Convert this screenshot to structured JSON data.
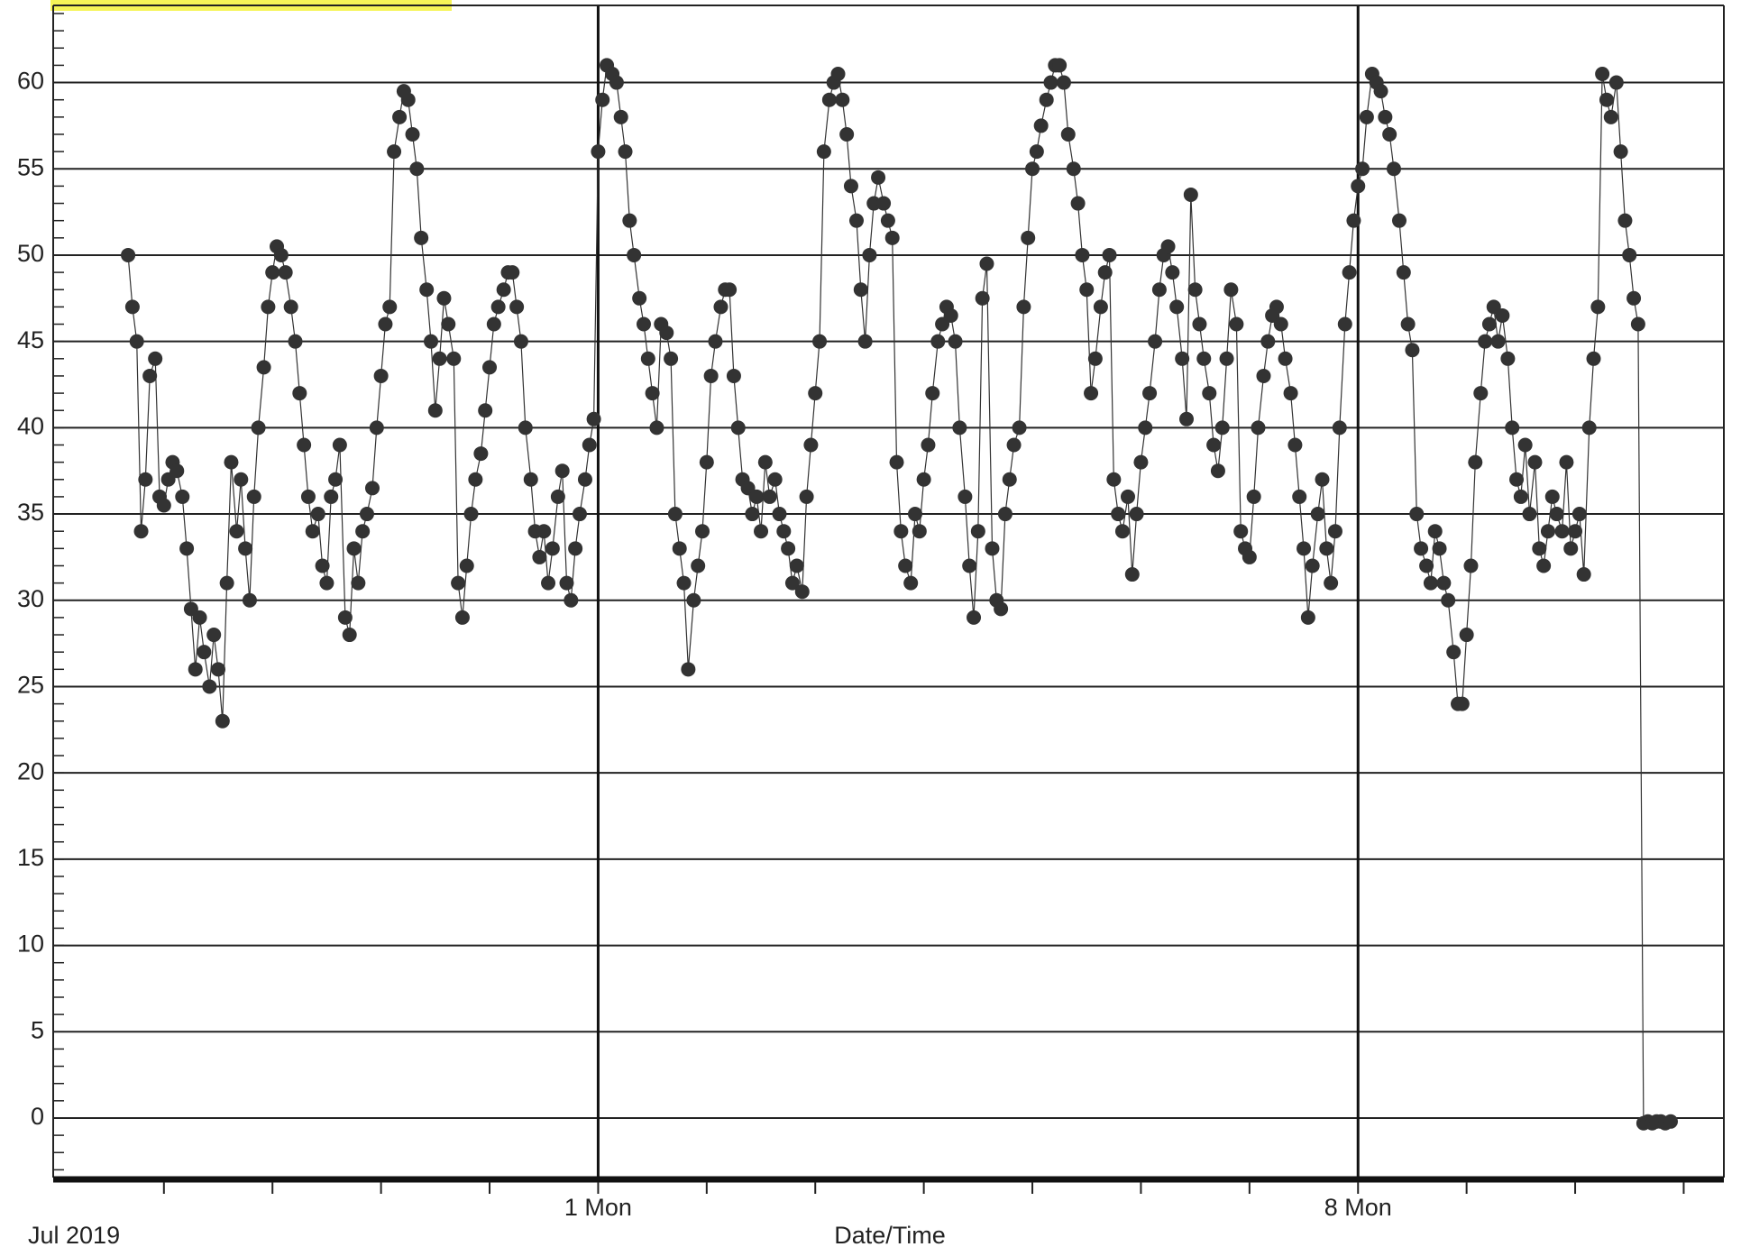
{
  "chart_data": {
    "type": "line",
    "x_label": "Date/Time",
    "x_origin_label": "Jul 2019",
    "color": "#333333",
    "marker": true,
    "grid": true,
    "xlim": [
      -4.02,
      11.37
    ],
    "ylim": [
      -3.45,
      64.47
    ],
    "xticks": [
      {
        "value": 1,
        "label": "1 Mon"
      },
      {
        "value": 8,
        "label": "8 Mon"
      }
    ],
    "xminorticks": [
      -3,
      -2,
      -1,
      0,
      1,
      2,
      3,
      4,
      5,
      6,
      7,
      8,
      9,
      10,
      11
    ],
    "yticks": [
      0,
      5,
      10,
      15,
      20,
      25,
      30,
      35,
      40,
      45,
      50,
      55,
      60
    ],
    "yminorticks": [
      -3,
      -2,
      -1,
      0,
      1,
      2,
      3,
      4,
      5,
      6,
      7,
      8,
      9,
      10,
      11,
      12,
      13,
      14,
      15,
      16,
      17,
      18,
      19,
      20,
      21,
      22,
      23,
      24,
      25,
      26,
      27,
      28,
      29,
      30,
      31,
      32,
      33,
      34,
      35,
      36,
      37,
      38,
      39,
      40,
      41,
      42,
      43,
      44,
      45,
      46,
      47,
      48,
      49,
      50,
      51,
      52,
      53,
      54,
      55,
      56,
      57,
      58,
      59,
      60,
      61,
      62,
      63,
      64
    ],
    "x": [
      -3.33,
      -3.29,
      -3.25,
      -3.21,
      -3.17,
      -3.13,
      -3.08,
      -3.04,
      -3.0,
      -2.96,
      -2.92,
      -2.88,
      -2.83,
      -2.79,
      -2.75,
      -2.71,
      -2.67,
      -2.63,
      -2.58,
      -2.54,
      -2.5,
      -2.46,
      -2.42,
      -2.38,
      -2.33,
      -2.29,
      -2.25,
      -2.21,
      -2.17,
      -2.13,
      -2.08,
      -2.04,
      -2.0,
      -1.96,
      -1.92,
      -1.88,
      -1.83,
      -1.79,
      -1.75,
      -1.71,
      -1.67,
      -1.63,
      -1.58,
      -1.54,
      -1.5,
      -1.46,
      -1.42,
      -1.38,
      -1.33,
      -1.29,
      -1.25,
      -1.21,
      -1.17,
      -1.13,
      -1.08,
      -1.04,
      -1.0,
      -0.96,
      -0.92,
      -0.88,
      -0.83,
      -0.79,
      -0.75,
      -0.71,
      -0.67,
      -0.63,
      -0.58,
      -0.54,
      -0.5,
      -0.46,
      -0.42,
      -0.38,
      -0.33,
      -0.29,
      -0.25,
      -0.21,
      -0.17,
      -0.13,
      -0.08,
      -0.04,
      0,
      0.04,
      0.08,
      0.13,
      0.17,
      0.21,
      0.25,
      0.29,
      0.33,
      0.38,
      0.42,
      0.46,
      0.5,
      0.54,
      0.58,
      0.63,
      0.67,
      0.71,
      0.75,
      0.79,
      0.83,
      0.88,
      0.92,
      0.96,
      1,
      1.04,
      1.08,
      1.13,
      1.17,
      1.21,
      1.25,
      1.29,
      1.33,
      1.38,
      1.42,
      1.46,
      1.5,
      1.54,
      1.58,
      1.63,
      1.67,
      1.71,
      1.75,
      1.79,
      1.83,
      1.88,
      1.92,
      1.96,
      2,
      2.04,
      2.08,
      2.13,
      2.17,
      2.21,
      2.25,
      2.29,
      2.33,
      2.38,
      2.42,
      2.46,
      2.5,
      2.54,
      2.58,
      2.63,
      2.67,
      2.71,
      2.75,
      2.79,
      2.83,
      2.88,
      2.92,
      2.96,
      3,
      3.04,
      3.08,
      3.13,
      3.17,
      3.21,
      3.25,
      3.29,
      3.33,
      3.38,
      3.42,
      3.46,
      3.5,
      3.54,
      3.58,
      3.63,
      3.67,
      3.71,
      3.75,
      3.79,
      3.83,
      3.88,
      3.92,
      3.96,
      4,
      4.04,
      4.08,
      4.13,
      4.17,
      4.21,
      4.25,
      4.29,
      4.33,
      4.38,
      4.42,
      4.46,
      4.5,
      4.54,
      4.58,
      4.63,
      4.67,
      4.71,
      4.75,
      4.79,
      4.83,
      4.88,
      4.92,
      4.96,
      5,
      5.04,
      5.08,
      5.13,
      5.17,
      5.21,
      5.25,
      5.29,
      5.33,
      5.38,
      5.42,
      5.46,
      5.5,
      5.54,
      5.58,
      5.63,
      5.67,
      5.71,
      5.75,
      5.79,
      5.83,
      5.88,
      5.92,
      5.96,
      6,
      6.04,
      6.08,
      6.13,
      6.17,
      6.21,
      6.25,
      6.29,
      6.33,
      6.38,
      6.42,
      6.46,
      6.5,
      6.54,
      6.58,
      6.63,
      6.67,
      6.71,
      6.75,
      6.79,
      6.83,
      6.88,
      6.92,
      6.96,
      7,
      7.04,
      7.08,
      7.13,
      7.17,
      7.21,
      7.25,
      7.29,
      7.33,
      7.38,
      7.42,
      7.46,
      7.5,
      7.54,
      7.58,
      7.63,
      7.67,
      7.71,
      7.75,
      7.79,
      7.83,
      7.88,
      7.92,
      7.96,
      8,
      8.04,
      8.08,
      8.13,
      8.17,
      8.21,
      8.25,
      8.29,
      8.33,
      8.38,
      8.42,
      8.46,
      8.5,
      8.54,
      8.58,
      8.63,
      8.67,
      8.71,
      8.75,
      8.79,
      8.83,
      8.88,
      8.92,
      8.96,
      9,
      9.04,
      9.08,
      9.13,
      9.17,
      9.21,
      9.25,
      9.29,
      9.33,
      9.38,
      9.42,
      9.46,
      9.5,
      9.54,
      9.58,
      9.63,
      9.67,
      9.71,
      9.75,
      9.79,
      9.83,
      9.88,
      9.92,
      9.96,
      10,
      10.04,
      10.08,
      10.13,
      10.17,
      10.21,
      10.25,
      10.29,
      10.33,
      10.38,
      10.42,
      10.46,
      10.5,
      10.54,
      10.58,
      10.63,
      10.67,
      10.71,
      10.75,
      10.79,
      10.83,
      10.88
    ],
    "values": [
      50,
      47,
      45,
      34,
      37,
      43,
      44,
      36,
      35.5,
      37,
      38,
      37.5,
      36,
      33,
      29.5,
      26,
      29,
      27,
      25,
      28,
      26,
      23,
      31,
      38,
      34,
      37,
      33,
      30,
      36,
      40,
      43.5,
      47,
      49,
      50.5,
      50,
      49,
      47,
      45,
      42,
      39,
      36,
      34,
      35,
      32,
      31,
      36,
      37,
      39,
      29,
      28,
      33,
      31,
      34,
      35,
      36.5,
      40,
      43,
      46,
      47,
      56,
      58,
      59.5,
      59,
      57,
      55,
      51,
      48,
      45,
      41,
      44,
      47.5,
      46,
      44,
      31,
      29,
      32,
      35,
      37,
      38.5,
      41,
      43.5,
      46,
      47,
      48,
      49,
      49,
      47,
      45,
      40,
      37,
      34,
      32.5,
      34,
      31,
      33,
      36,
      37.5,
      31,
      30,
      33,
      35,
      37,
      39,
      40.5,
      56,
      59,
      61,
      60.5,
      60,
      58,
      56,
      52,
      50,
      47.5,
      46,
      44,
      42,
      40,
      46,
      45.5,
      44,
      35,
      33,
      31,
      26,
      30,
      32,
      34,
      38,
      43,
      45,
      47,
      48,
      48,
      43,
      40,
      37,
      36.5,
      35,
      36,
      34,
      38,
      36,
      37,
      35,
      34,
      33,
      31,
      32,
      30.5,
      36,
      39,
      42,
      45,
      56,
      59,
      60,
      60.5,
      59,
      57,
      54,
      52,
      48,
      45,
      50,
      53,
      54.5,
      53,
      52,
      51,
      38,
      34,
      32,
      31,
      35,
      34,
      37,
      39,
      42,
      45,
      46,
      47,
      46.5,
      45,
      40,
      36,
      32,
      29,
      34,
      47.5,
      49.5,
      33,
      30,
      29.5,
      35,
      37,
      39,
      40,
      47,
      51,
      55,
      56,
      57.5,
      59,
      60,
      61,
      61,
      60,
      57,
      55,
      53,
      50,
      48,
      42,
      44,
      47,
      49,
      50,
      37,
      35,
      34,
      36,
      31.5,
      35,
      38,
      40,
      42,
      45,
      48,
      50,
      50.5,
      49,
      47,
      44,
      40.5,
      53.5,
      48,
      46,
      44,
      42,
      39,
      37.5,
      40,
      44,
      48,
      46,
      34,
      33,
      32.5,
      36,
      40,
      43,
      45,
      46.5,
      47,
      46,
      44,
      42,
      39,
      36,
      33,
      29,
      32,
      35,
      37,
      33,
      31,
      34,
      40,
      46,
      49,
      52,
      54,
      55,
      58,
      60.5,
      60,
      59.5,
      58,
      57,
      55,
      52,
      49,
      46,
      44.5,
      35,
      33,
      32,
      31,
      34,
      33,
      31,
      30,
      27,
      24,
      24,
      28,
      32,
      38,
      42,
      45,
      46,
      47,
      45,
      46.5,
      44,
      40,
      37,
      36,
      39,
      35,
      38,
      33,
      32,
      34,
      36,
      35,
      34,
      38,
      33,
      34,
      35,
      31.5,
      40,
      44,
      47,
      60.5,
      59,
      58,
      60,
      56,
      52,
      50,
      47.5,
      46,
      -0.3,
      -0.2,
      -0.3,
      -0.2,
      -0.2,
      -0.3,
      -0.2
    ]
  }
}
